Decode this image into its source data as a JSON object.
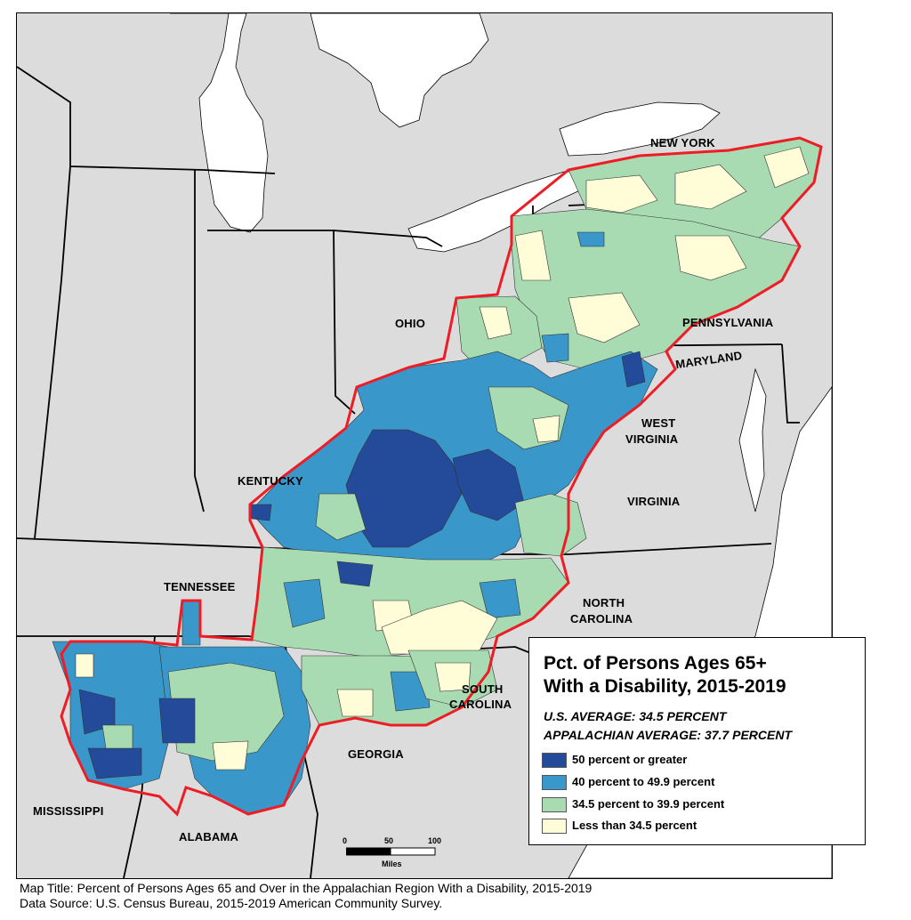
{
  "map": {
    "colors": {
      "land": "#dcdcdc",
      "water": "#ffffff",
      "border": "#000000",
      "region_outline": "#ee1c24",
      "class_50_plus": "#244a9a",
      "class_40_49": "#3a97c9",
      "class_34_39": "#a9dbb3",
      "class_below_34": "#fefdd8"
    },
    "state_labels": {
      "new_york": "NEW YORK",
      "pennsylvania": "PENNSYLVANIA",
      "ohio": "OHIO",
      "maryland": "MARYLAND",
      "west_virginia_line1": "WEST",
      "west_virginia_line2": "VIRGINIA",
      "kentucky": "KENTUCKY",
      "virginia": "VIRGINIA",
      "tennessee": "TENNESSEE",
      "north_carolina_line1": "NORTH",
      "north_carolina_line2": "CAROLINA",
      "south_carolina_line1": "SOUTH",
      "south_carolina_line2": "CAROLINA",
      "georgia": "GEORGIA",
      "mississippi": "MISSISSIPPI",
      "alabama": "ALABAMA"
    }
  },
  "legend": {
    "title_line1": "Pct. of Persons Ages 65+",
    "title_line2": "With a Disability, 2015-2019",
    "us_average": "U.S. AVERAGE: 34.5 PERCENT",
    "appalachian_average": "APPALACHIAN AVERAGE: 37.7 PERCENT",
    "classes": [
      {
        "label": "50 percent or greater",
        "color": "#244a9a"
      },
      {
        "label": "40 percent to 49.9 percent",
        "color": "#3a97c9"
      },
      {
        "label": "34.5 percent to 39.9 percent",
        "color": "#a9dbb3"
      },
      {
        "label": "Less than 34.5 percent",
        "color": "#fefdd8"
      }
    ]
  },
  "scalebar": {
    "ticks": [
      "0",
      "50",
      "100"
    ],
    "unit": "Miles"
  },
  "footer": {
    "map_title": "Map Title: Percent of Persons Ages 65 and Over in the Appalachian Region With a Disability, 2015-2019",
    "data_source": "Data Source: U.S. Census Bureau, 2015-2019 American Community Survey."
  }
}
